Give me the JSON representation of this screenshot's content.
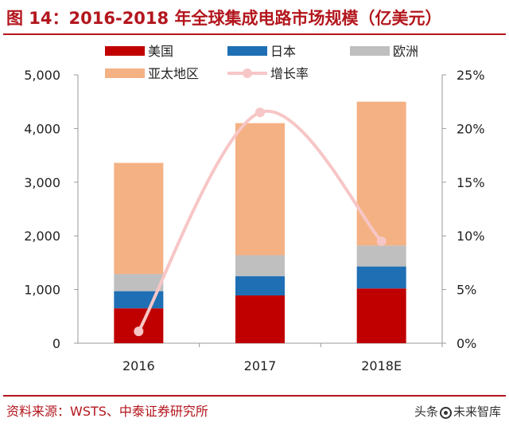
{
  "header": {
    "title": "图 14：2016-2018 年全球集成电路市场规模（亿美元）"
  },
  "footer": {
    "source": "资料来源：WSTS、中泰证券研究所",
    "watermark_prefix": "头条",
    "watermark_suffix": "未来智库"
  },
  "colors": {
    "accent": "#b3161d",
    "usa": "#c00000",
    "japan": "#1f6fb4",
    "europe": "#bfbfbf",
    "apac": "#f4b183",
    "growth": "#f7c6c6"
  },
  "chart_data": {
    "type": "bar",
    "stacked": true,
    "categories": [
      "2016",
      "2017",
      "2018E"
    ],
    "series": [
      {
        "name": "美国",
        "values": [
          650,
          890,
          1020
        ]
      },
      {
        "name": "日本",
        "values": [
          320,
          360,
          410
        ]
      },
      {
        "name": "欧洲",
        "values": [
          320,
          390,
          390
        ]
      },
      {
        "name": "亚太地区",
        "values": [
          2070,
          2460,
          2680
        ]
      }
    ],
    "line_series": {
      "name": "增长率",
      "values": [
        1.1,
        21.5,
        9.5
      ],
      "axis": "right"
    },
    "yticks": [
      "0",
      "1,000",
      "2,000",
      "3,000",
      "4,000",
      "5,000"
    ],
    "y2ticks": [
      "0%",
      "5%",
      "10%",
      "15%",
      "20%",
      "25%"
    ],
    "ylim": [
      0,
      5000
    ],
    "y2lim": [
      0,
      25
    ],
    "grid": false,
    "legend_position": "top"
  }
}
